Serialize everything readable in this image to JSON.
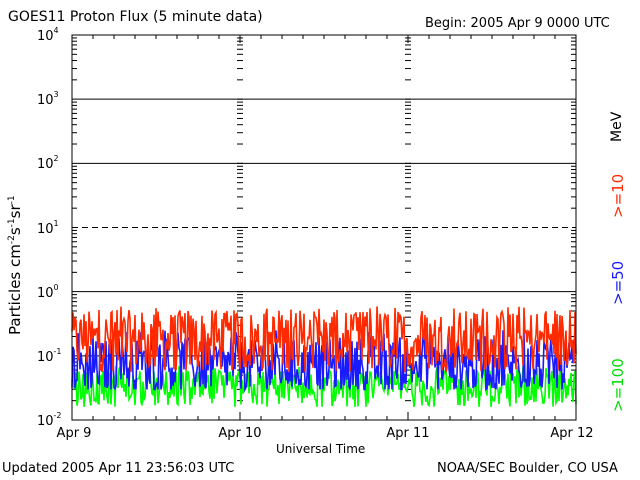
{
  "header": {
    "title": "GOES11 Proton Flux (5 minute data)",
    "begin": "Begin: 2005 Apr 9 0000 UTC"
  },
  "footer": {
    "updated": "Updated 2005 Apr 11 23:56:03 UTC",
    "credit": "NOAA/SEC Boulder, CO USA"
  },
  "chart_data": {
    "type": "line",
    "title": "GOES11 Proton Flux (5 minute data)",
    "xlabel": "Universal Time",
    "ylabel_base": "Particles cm",
    "ylabel_exp1": "-2",
    "ylabel_mid": "s",
    "ylabel_exp2": "-1",
    "ylabel_mid2": "sr",
    "ylabel_exp3": "-1",
    "yscale": "log",
    "ylim": [
      0.01,
      10000
    ],
    "yticks": [
      {
        "base": "10",
        "exp": "4"
      },
      {
        "base": "10",
        "exp": "3"
      },
      {
        "base": "10",
        "exp": "2"
      },
      {
        "base": "10",
        "exp": "1"
      },
      {
        "base": "10",
        "exp": "0"
      },
      {
        "base": "10",
        "exp": "-1"
      },
      {
        "base": "10",
        "exp": "-2"
      }
    ],
    "x_tick_labels": [
      "Apr 9",
      "Apr 10",
      "Apr 11",
      "Apr 12"
    ],
    "xlim": [
      "2005-04-09",
      "2005-04-12"
    ],
    "grid": "solid lines at 1, 100, 1000; dashed at 0.1 and 10",
    "units_label": "MeV",
    "colors": {
      "ge10": "#ff2a00",
      "ge50": "#1a1aff",
      "ge100": "#00ff00"
    },
    "series": [
      {
        "name": ">=10",
        "color": "#ff2a00",
        "typical": 0.17,
        "range": [
          0.05,
          0.6
        ]
      },
      {
        "name": ">=50",
        "color": "#1a1aff",
        "typical": 0.07,
        "range": [
          0.03,
          0.25
        ]
      },
      {
        "name": ">=100",
        "color": "#00ff00",
        "typical": 0.03,
        "range": [
          0.016,
          0.07
        ]
      }
    ]
  }
}
